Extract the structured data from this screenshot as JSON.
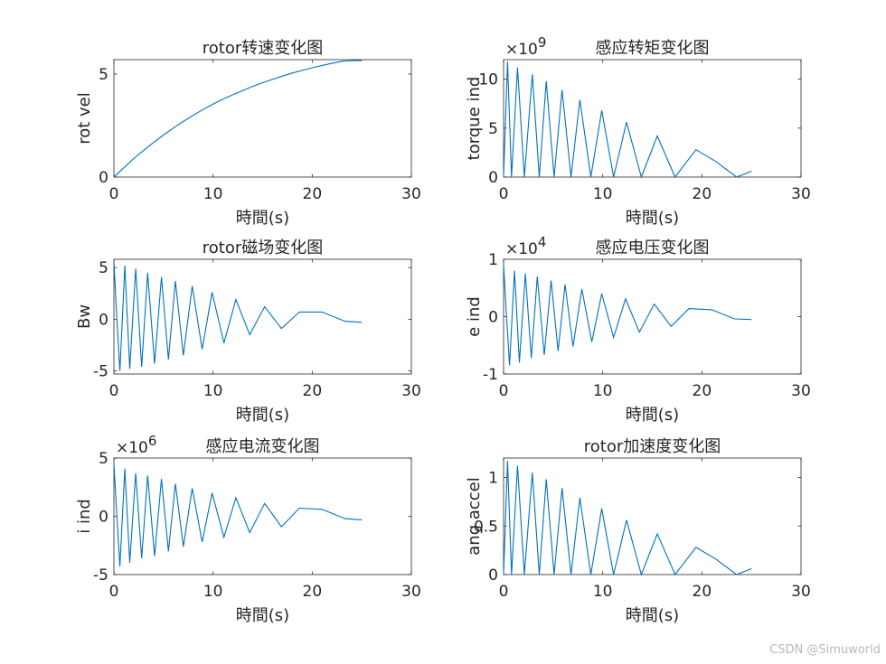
{
  "watermark": "CSDN @Simuworld",
  "series_color": "#0072BD",
  "chart_data": [
    {
      "type": "line",
      "title": "rotor转速变化图",
      "xlabel": "時間(s)",
      "ylabel": "rot vel",
      "exponent_label": "",
      "xlim": [
        0,
        30
      ],
      "ylim": [
        0,
        5.7
      ],
      "xticks": [
        "0",
        "10",
        "20",
        "30"
      ],
      "yticks": [
        {
          "value": 0,
          "label": "0"
        },
        {
          "value": 5,
          "label": "5"
        }
      ],
      "series": [
        {
          "x": [
            0,
            1,
            2,
            3,
            4,
            5,
            6,
            7,
            8,
            9,
            10,
            11,
            12,
            13,
            14,
            15,
            16,
            17,
            18,
            19,
            20,
            21,
            22,
            23,
            24,
            25
          ],
          "y": [
            0,
            0.45,
            0.9,
            1.3,
            1.68,
            2.04,
            2.38,
            2.7,
            3.0,
            3.28,
            3.54,
            3.78,
            4.0,
            4.2,
            4.4,
            4.58,
            4.74,
            4.9,
            5.05,
            5.18,
            5.3,
            5.42,
            5.52,
            5.62,
            5.65,
            5.65
          ]
        }
      ]
    },
    {
      "type": "line",
      "title": "感应转矩变化图",
      "xlabel": "時間(s)",
      "ylabel": "torque ind",
      "exponent_label": "×10^9",
      "xlim": [
        0,
        30
      ],
      "ylim": [
        0,
        12
      ],
      "xticks": [
        "0",
        "10",
        "20",
        "30"
      ],
      "yticks": [
        {
          "value": 0,
          "label": "0"
        },
        {
          "value": 5,
          "label": "5"
        },
        {
          "value": 10,
          "label": "10"
        }
      ],
      "series": [
        {
          "x": [
            0,
            0.4,
            0.8,
            1.4,
            2.1,
            2.9,
            3.6,
            4.3,
            5.1,
            5.9,
            6.8,
            7.7,
            8.8,
            9.9,
            11.1,
            12.4,
            13.9,
            15.5,
            17.3,
            19.4,
            21.4,
            23.5,
            25
          ],
          "y": [
            0,
            11.8,
            0,
            11.2,
            0,
            10.5,
            0,
            9.8,
            0,
            8.9,
            0,
            7.9,
            0,
            6.8,
            0,
            5.6,
            0,
            4.2,
            0,
            2.8,
            1.6,
            0,
            0.6
          ]
        }
      ]
    },
    {
      "type": "line",
      "title": "rotor磁场变化图",
      "xlabel": "時間(s)",
      "ylabel": "Bw",
      "exponent_label": "",
      "xlim": [
        0,
        30
      ],
      "ylim": [
        -5.3,
        5.8
      ],
      "xticks": [
        "0",
        "10",
        "20",
        "30"
      ],
      "yticks": [
        {
          "value": -5,
          "label": "-5"
        },
        {
          "value": 0,
          "label": "0"
        },
        {
          "value": 5,
          "label": "5"
        }
      ],
      "series": [
        {
          "x": [
            0,
            0.3,
            0.6,
            1.1,
            1.6,
            2.2,
            2.8,
            3.4,
            4.1,
            4.8,
            5.5,
            6.2,
            7.0,
            7.9,
            8.9,
            9.9,
            11.1,
            12.3,
            13.7,
            15.2,
            16.9,
            18.7,
            21.0,
            23.3,
            25
          ],
          "y": [
            5.6,
            0,
            -5.0,
            5.2,
            -4.8,
            4.9,
            -4.6,
            4.5,
            -4.3,
            4.1,
            -3.9,
            3.7,
            -3.5,
            3.2,
            -2.9,
            2.6,
            -2.3,
            1.9,
            -1.5,
            1.2,
            -0.9,
            0.7,
            0.7,
            -0.2,
            -0.3
          ]
        }
      ]
    },
    {
      "type": "line",
      "title": "感应电压变化图",
      "xlabel": "時間(s)",
      "ylabel": "e ind",
      "exponent_label": "×10^4",
      "xlim": [
        0,
        30
      ],
      "ylim": [
        -1,
        1
      ],
      "xticks": [
        "0",
        "10",
        "20",
        "30"
      ],
      "yticks": [
        {
          "value": -1,
          "label": "-1"
        },
        {
          "value": 0,
          "label": "0"
        },
        {
          "value": 1,
          "label": "1"
        }
      ],
      "series": [
        {
          "x": [
            0,
            0.3,
            0.6,
            1.1,
            1.6,
            2.2,
            2.8,
            3.4,
            4.1,
            4.8,
            5.5,
            6.2,
            7.0,
            7.9,
            8.9,
            9.9,
            11.1,
            12.3,
            13.7,
            15.2,
            16.9,
            18.7,
            21.0,
            23.3,
            25
          ],
          "y": [
            0.9,
            0,
            -0.85,
            0.8,
            -0.8,
            0.75,
            -0.72,
            0.7,
            -0.67,
            0.63,
            -0.6,
            0.56,
            -0.52,
            0.48,
            -0.44,
            0.4,
            -0.36,
            0.31,
            -0.27,
            0.22,
            -0.17,
            0.14,
            0.12,
            -0.04,
            -0.05
          ]
        }
      ]
    },
    {
      "type": "line",
      "title": "感应电流变化图",
      "xlabel": "時間(s)",
      "ylabel": "i ind",
      "exponent_label": "×10^6",
      "xlim": [
        0,
        30
      ],
      "ylim": [
        -5,
        5
      ],
      "xticks": [
        "0",
        "10",
        "20",
        "30"
      ],
      "yticks": [
        {
          "value": -5,
          "label": "-5"
        },
        {
          "value": 0,
          "label": "0"
        },
        {
          "value": 5,
          "label": "5"
        }
      ],
      "series": [
        {
          "x": [
            0,
            0.3,
            0.6,
            1.1,
            1.6,
            2.2,
            2.8,
            3.4,
            4.1,
            4.8,
            5.5,
            6.2,
            7.0,
            7.9,
            8.9,
            9.9,
            11.1,
            12.3,
            13.7,
            15.2,
            16.9,
            18.7,
            21.0,
            23.3,
            25
          ],
          "y": [
            4.5,
            0,
            -4.3,
            4.1,
            -4.0,
            3.7,
            -3.6,
            3.5,
            -3.4,
            3.2,
            -3.0,
            2.8,
            -2.6,
            2.4,
            -2.2,
            2.0,
            -1.8,
            1.6,
            -1.4,
            1.1,
            -0.9,
            0.7,
            0.6,
            -0.2,
            -0.3
          ]
        }
      ]
    },
    {
      "type": "line",
      "title": "rotor加速度变化图",
      "xlabel": "時間(s)",
      "ylabel": "ang accel",
      "exponent_label": "",
      "xlim": [
        0,
        30
      ],
      "ylim": [
        0,
        1.2
      ],
      "xticks": [
        "0",
        "10",
        "20",
        "30"
      ],
      "yticks": [
        {
          "value": 0,
          "label": "0"
        },
        {
          "value": 0.5,
          "label": "0.5"
        },
        {
          "value": 1,
          "label": "1"
        }
      ],
      "series": [
        {
          "x": [
            0,
            0.4,
            0.8,
            1.4,
            2.1,
            2.9,
            3.6,
            4.3,
            5.1,
            5.9,
            6.8,
            7.7,
            8.8,
            9.9,
            11.1,
            12.4,
            13.9,
            15.5,
            17.3,
            19.4,
            21.4,
            23.5,
            25
          ],
          "y": [
            0,
            1.17,
            0,
            1.12,
            0,
            1.05,
            0,
            0.98,
            0,
            0.89,
            0,
            0.79,
            0,
            0.68,
            0,
            0.56,
            0,
            0.42,
            0,
            0.28,
            0.16,
            0,
            0.06
          ]
        }
      ]
    }
  ]
}
